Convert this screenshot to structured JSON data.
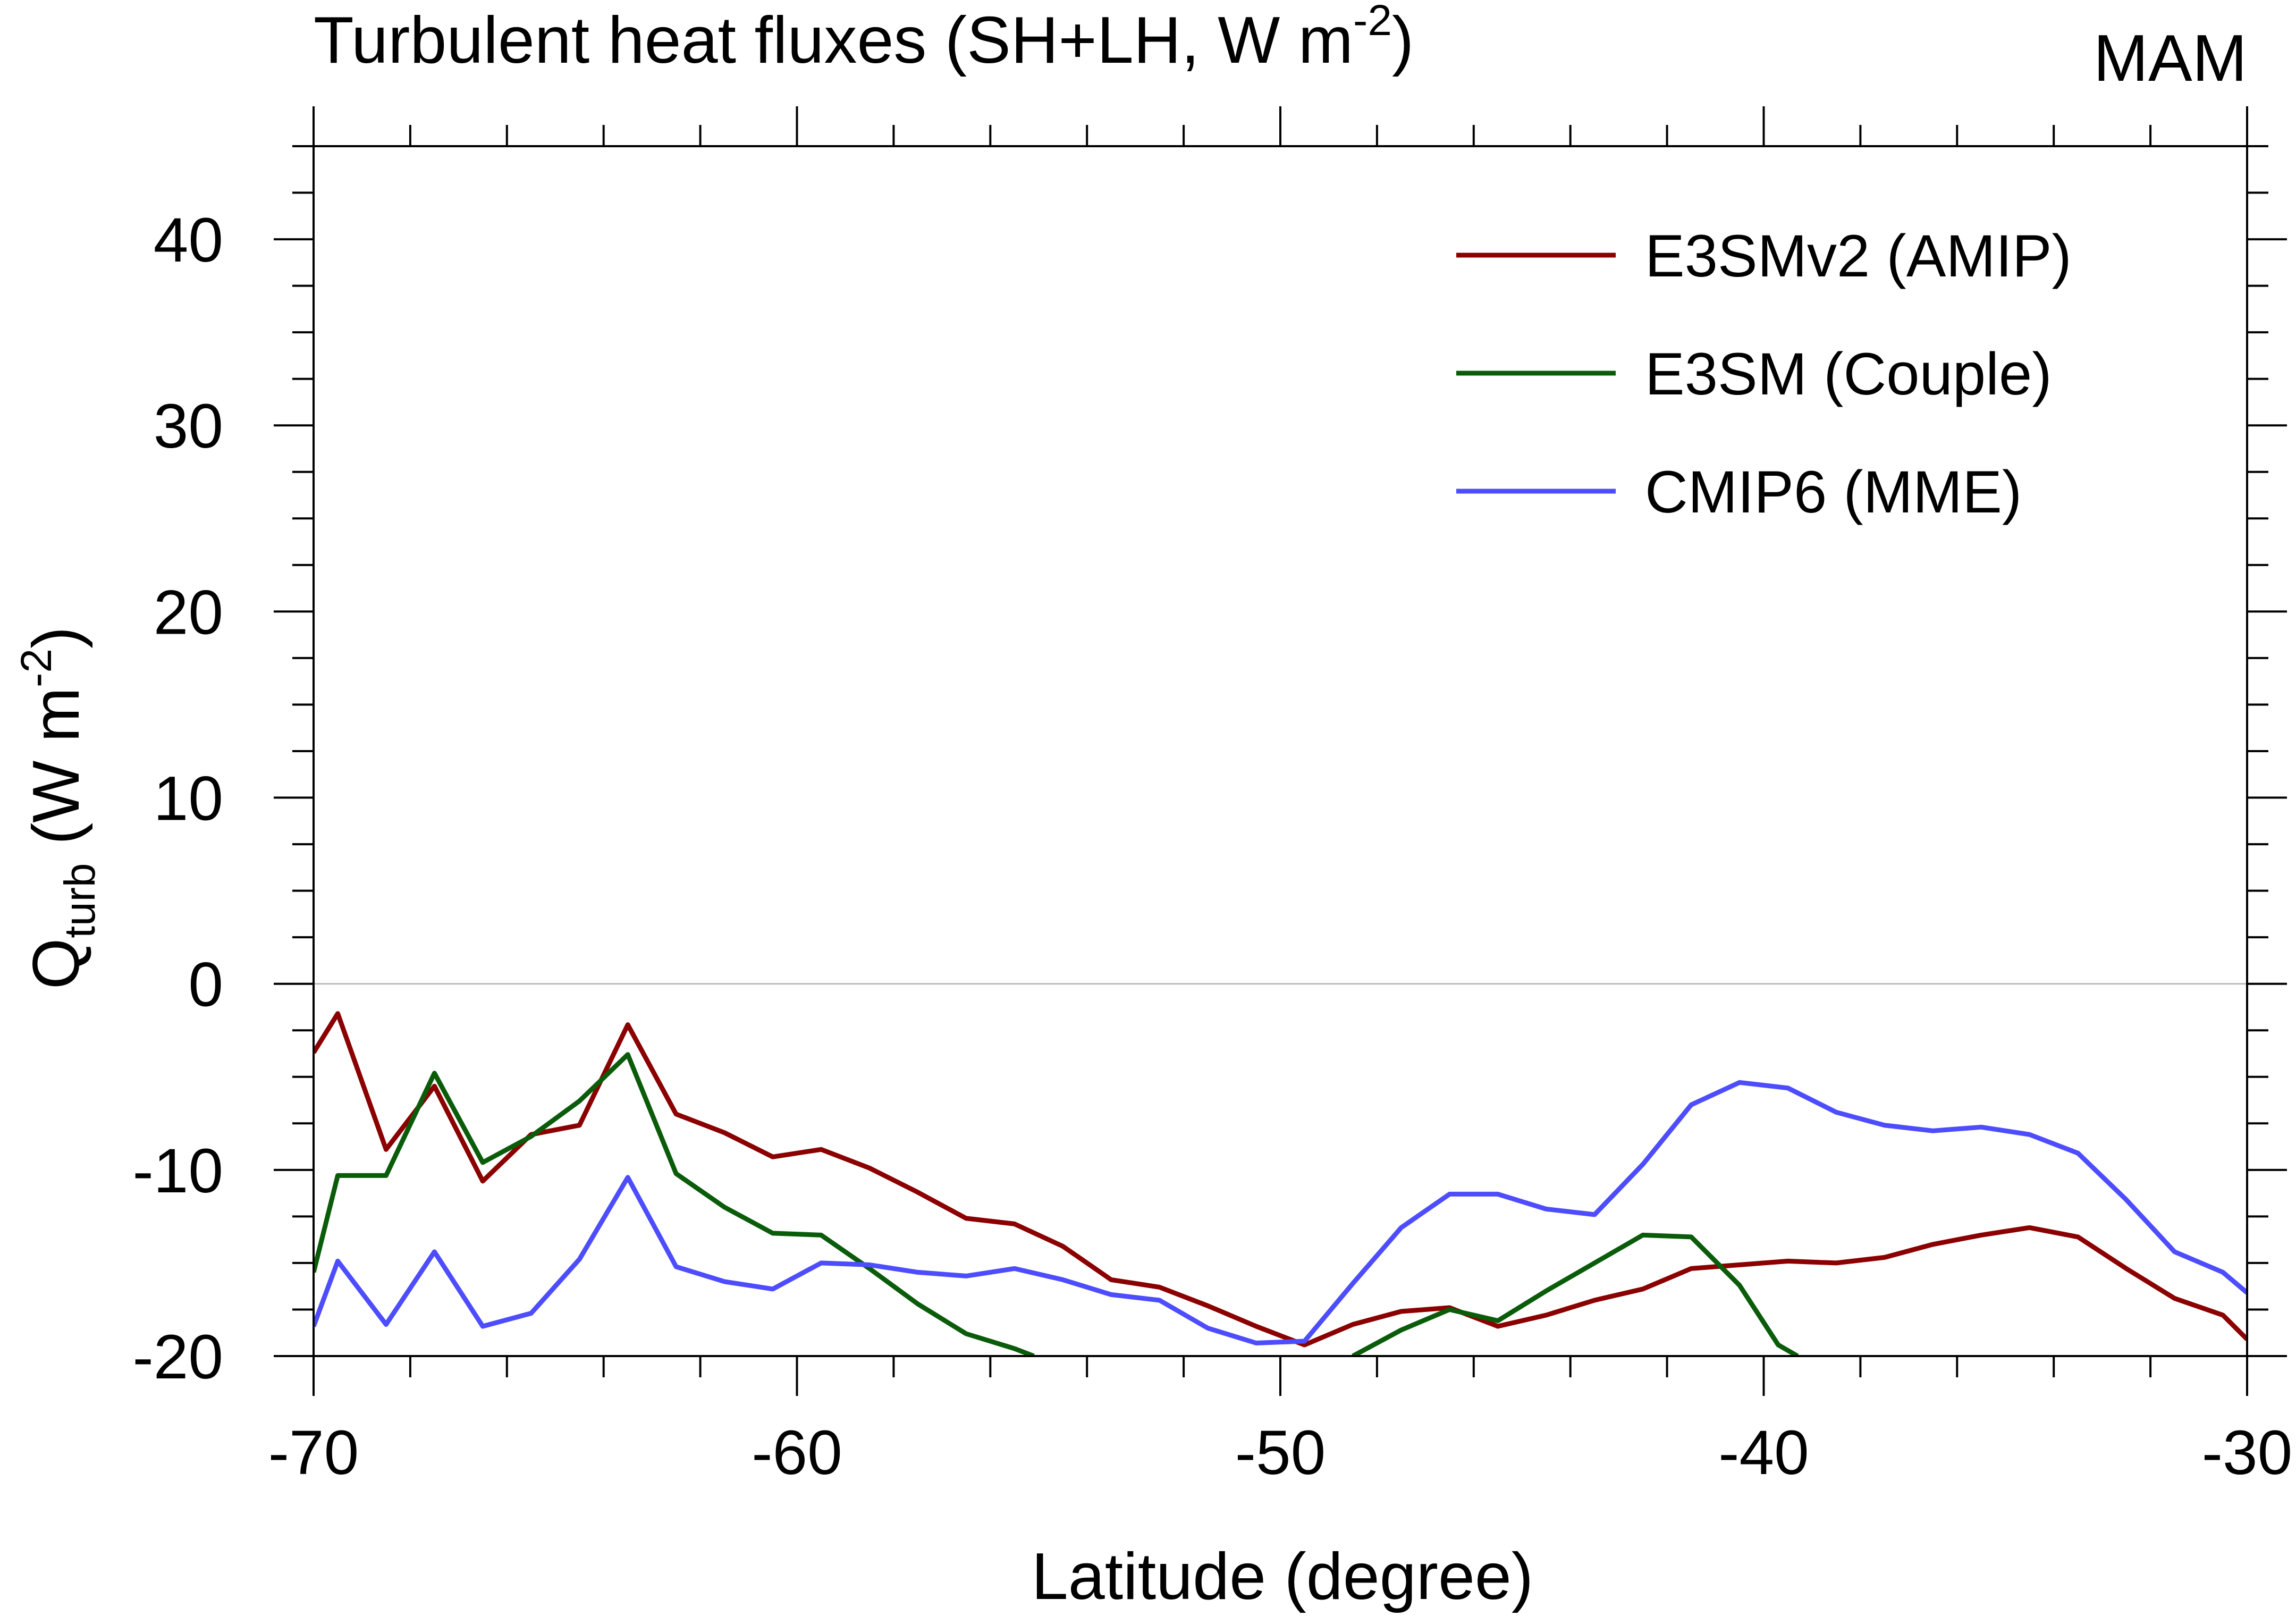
{
  "chart_data": {
    "type": "line",
    "title": "Turbulent heat fluxes (SH+LH, W m",
    "title_sup": "-2",
    "title_tail": ")",
    "season": "MAM",
    "xlabel": "Latitude (degree)",
    "ylabel_main": "Q",
    "ylabel_sub": "turb",
    "ylabel_mid": " (W m",
    "ylabel_sup": "-2",
    "ylabel_tail": ")",
    "xlim": [
      -70,
      -30
    ],
    "ylim": [
      -20,
      45
    ],
    "xticks": [
      -70,
      -60,
      -50,
      -40,
      -30
    ],
    "yticks": [
      -20,
      -10,
      0,
      10,
      20,
      30,
      40
    ],
    "xtick_labels": [
      "-70",
      "-60",
      "-50",
      "-40",
      "-30"
    ],
    "ytick_labels": [
      "-20",
      "-10",
      "0",
      "10",
      "20",
      "30",
      "40"
    ],
    "x_minor_step": 2,
    "y_minor_step": 2.5,
    "zero_line": true,
    "grid": false,
    "legend_position": "top-right",
    "series": [
      {
        "name": "E3SMv2 (AMIP)",
        "color": "#8b0000",
        "x": [
          -70,
          -69.5,
          -68.5,
          -67.5,
          -66.5,
          -65.5,
          -64.5,
          -63.5,
          -62.5,
          -61.5,
          -60.5,
          -59.5,
          -58.5,
          -57.5,
          -56.5,
          -55.5,
          -54.5,
          -53.5,
          -52.5,
          -51.5,
          -50.5,
          -49.5,
          -48.5,
          -47.5,
          -46.5,
          -45.5,
          -44.5,
          -43.5,
          -42.5,
          -41.5,
          -40.5,
          -39.5,
          -38.5,
          -37.5,
          -36.5,
          -35.5,
          -34.5,
          -33.5,
          -32.5,
          -31.5,
          -30.5,
          -30
        ],
        "y": [
          -3.7,
          -1.6,
          -8.9,
          -5.5,
          -10.6,
          -8.1,
          -7.6,
          -2.2,
          -7.0,
          -8.0,
          -9.3,
          -8.9,
          -9.9,
          -11.2,
          -12.6,
          -12.9,
          -14.1,
          -15.9,
          -16.3,
          -17.3,
          -18.4,
          -19.4,
          -18.3,
          -17.6,
          -17.4,
          -18.4,
          -17.8,
          -17.0,
          -16.4,
          -15.3,
          -15.1,
          -14.9,
          -15.0,
          -14.7,
          -14.0,
          -13.5,
          -13.1,
          -13.6,
          -15.3,
          -16.9,
          -17.8,
          -19.1
        ]
      },
      {
        "name": "E3SM (Couple)",
        "color": "#0a5c0a",
        "x": [
          -70,
          -69.5,
          -68.5,
          -67.5,
          -66.5,
          -65.5,
          -64.5,
          -63.5,
          -62.5,
          -61.5,
          -60.5,
          -59.5,
          -58.5,
          -57.5,
          -56.5,
          -55.5,
          -55.1,
          null,
          -48.5,
          -47.5,
          -46.5,
          -45.5,
          -44.5,
          -43.5,
          -42.5,
          -41.5,
          -40.5,
          -39.7,
          -39.3
        ],
        "y": [
          -15.5,
          -10.3,
          -10.3,
          -4.8,
          -9.6,
          -8.2,
          -6.3,
          -3.8,
          -10.2,
          -12.0,
          -13.4,
          -13.5,
          -15.3,
          -17.2,
          -18.8,
          -19.6,
          -20.0,
          null,
          -20.0,
          -18.6,
          -17.5,
          -18.1,
          -16.5,
          -15.0,
          -13.5,
          -13.6,
          -16.2,
          -19.4,
          -20.0
        ]
      },
      {
        "name": "CMIP6 (MME)",
        "color": "#4d4dff",
        "x": [
          -70,
          -69.5,
          -68.5,
          -67.5,
          -66.5,
          -65.5,
          -64.5,
          -63.5,
          -62.5,
          -61.5,
          -60.5,
          -59.5,
          -58.5,
          -57.5,
          -56.5,
          -55.5,
          -54.5,
          -53.5,
          -52.5,
          -51.5,
          -50.5,
          -49.5,
          -48.5,
          -47.5,
          -46.5,
          -45.5,
          -44.5,
          -43.5,
          -42.5,
          -41.5,
          -40.5,
          -39.5,
          -38.5,
          -37.5,
          -36.5,
          -35.5,
          -34.5,
          -33.5,
          -32.5,
          -31.5,
          -30.5,
          -30
        ],
        "y": [
          -18.4,
          -14.9,
          -18.3,
          -14.4,
          -18.4,
          -17.7,
          -14.8,
          -10.4,
          -15.2,
          -16.0,
          -16.4,
          -15.0,
          -15.1,
          -15.5,
          -15.7,
          -15.3,
          -15.9,
          -16.7,
          -17.0,
          -18.5,
          -19.3,
          -19.2,
          -16.1,
          -13.1,
          -11.3,
          -11.3,
          -12.1,
          -12.4,
          -9.7,
          -6.5,
          -5.3,
          -5.6,
          -6.9,
          -7.6,
          -7.9,
          -7.7,
          -8.1,
          -9.1,
          -11.6,
          -14.4,
          -15.5,
          -16.6
        ]
      }
    ]
  }
}
